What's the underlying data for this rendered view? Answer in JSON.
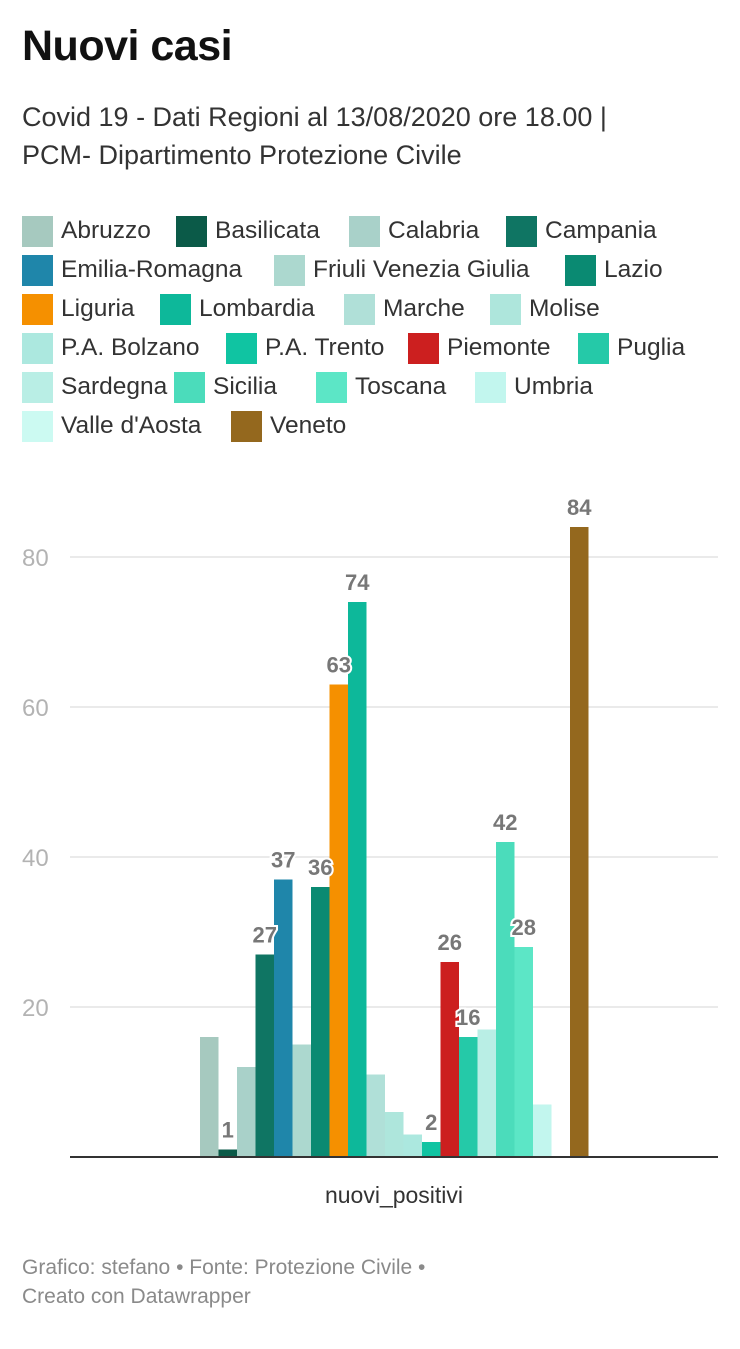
{
  "header": {
    "title": "Nuovi casi",
    "subtitle_line1": "Covid 19 - Dati Regioni al 13/08/2020 ore 18.00 |",
    "subtitle_line2": "PCM- Dipartimento Protezione Civile"
  },
  "chart_data": {
    "type": "bar",
    "categories": [
      "nuovi_positivi"
    ],
    "xlabel": "nuovi_positivi",
    "ylabel": "",
    "ylim": [
      0,
      88
    ],
    "yticks": [
      20,
      40,
      60,
      80
    ],
    "grid": true,
    "legend_position": "top",
    "series": [
      {
        "name": "Abruzzo",
        "values": [
          16
        ],
        "color": "#a6c9bf",
        "label": ""
      },
      {
        "name": "Basilicata",
        "values": [
          1
        ],
        "color": "#0b5a48",
        "label": "1"
      },
      {
        "name": "Calabria",
        "values": [
          12
        ],
        "color": "#a9d1c9",
        "label": ""
      },
      {
        "name": "Campania",
        "values": [
          27
        ],
        "color": "#0f7563",
        "label": "27"
      },
      {
        "name": "Emilia-Romagna",
        "values": [
          37
        ],
        "color": "#1f86aa",
        "label": "37"
      },
      {
        "name": "Friuli Venezia Giulia",
        "values": [
          15
        ],
        "color": "#acd8cf",
        "label": ""
      },
      {
        "name": "Lazio",
        "values": [
          36
        ],
        "color": "#0a8a72",
        "label": "36"
      },
      {
        "name": "Liguria",
        "values": [
          63
        ],
        "color": "#f59000",
        "label": "63"
      },
      {
        "name": "Lombardia",
        "values": [
          74
        ],
        "color": "#0db89a",
        "label": "74"
      },
      {
        "name": "Marche",
        "values": [
          11
        ],
        "color": "#b0e0d8",
        "label": ""
      },
      {
        "name": "Molise",
        "values": [
          6
        ],
        "color": "#aee6dc",
        "label": ""
      },
      {
        "name": "P.A. Bolzano",
        "values": [
          3
        ],
        "color": "#ace8df",
        "label": ""
      },
      {
        "name": "P.A. Trento",
        "values": [
          2
        ],
        "color": "#10c4a2",
        "label": "2"
      },
      {
        "name": "Piemonte",
        "values": [
          26
        ],
        "color": "#cc1f1f",
        "label": "26"
      },
      {
        "name": "Puglia",
        "values": [
          16
        ],
        "color": "#25c9a8",
        "label": "16"
      },
      {
        "name": "Sardegna",
        "values": [
          17
        ],
        "color": "#b9eee5",
        "label": ""
      },
      {
        "name": "Sicilia",
        "values": [
          42
        ],
        "color": "#4bdcbb",
        "label": "42"
      },
      {
        "name": "Toscana",
        "values": [
          28
        ],
        "color": "#5ce6c6",
        "label": "28"
      },
      {
        "name": "Umbria",
        "values": [
          7
        ],
        "color": "#c2f6ee",
        "label": ""
      },
      {
        "name": "Valle d'Aosta",
        "values": [
          0
        ],
        "color": "#ccfaf2",
        "label": ""
      },
      {
        "name": "Veneto",
        "values": [
          84
        ],
        "color": "#94681e",
        "label": "84"
      }
    ]
  },
  "footer": {
    "line1": "Grafico: stefano • Fonte: Protezione Civile •",
    "line2": "Creato con Datawrapper"
  }
}
